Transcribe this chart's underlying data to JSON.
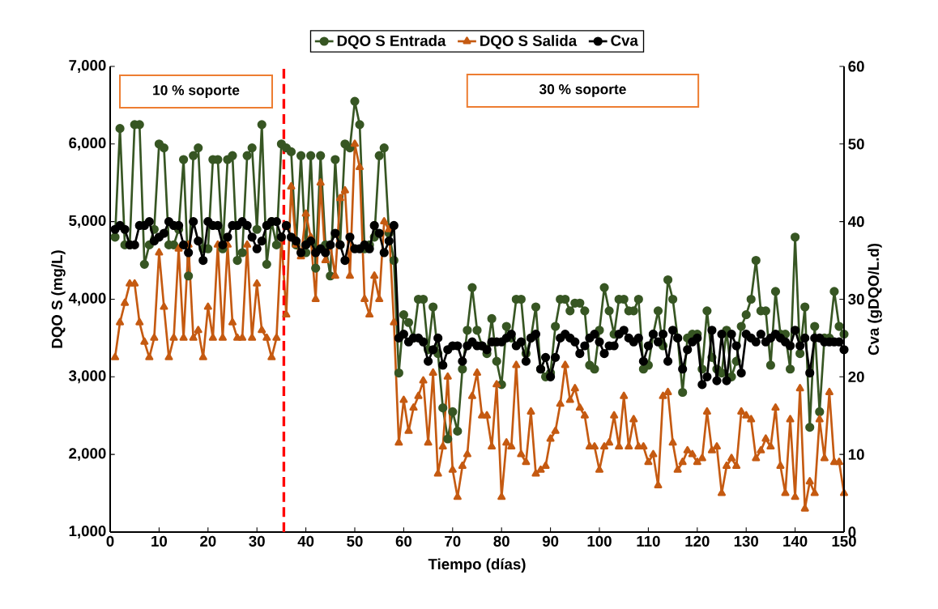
{
  "chart_data": {
    "type": "line",
    "xlabel": "Tiempo (días)",
    "ylabel": "DQO S (mg/L)",
    "y2label": "Cva (gDQO/L.d)",
    "x": [
      1,
      2,
      3,
      4,
      5,
      6,
      7,
      8,
      9,
      10,
      11,
      12,
      13,
      14,
      15,
      16,
      17,
      18,
      19,
      20,
      21,
      22,
      23,
      24,
      25,
      26,
      27,
      28,
      29,
      30,
      31,
      32,
      33,
      34,
      35,
      36,
      37,
      38,
      39,
      40,
      41,
      42,
      43,
      44,
      45,
      46,
      47,
      48,
      49,
      50,
      51,
      52,
      53,
      54,
      55,
      56,
      57,
      58,
      59,
      60,
      61,
      62,
      63,
      64,
      65,
      66,
      67,
      68,
      69,
      70,
      71,
      72,
      73,
      74,
      75,
      76,
      77,
      78,
      79,
      80,
      81,
      82,
      83,
      84,
      85,
      86,
      87,
      88,
      89,
      90,
      91,
      92,
      93,
      94,
      95,
      96,
      97,
      98,
      99,
      100,
      101,
      102,
      103,
      104,
      105,
      106,
      107,
      108,
      109,
      110,
      111,
      112,
      113,
      114,
      115,
      116,
      117,
      118,
      119,
      120,
      121,
      122,
      123,
      124,
      125,
      126,
      127,
      128,
      129,
      130,
      131,
      132,
      133,
      134,
      135,
      136,
      137,
      138,
      139,
      140,
      141,
      142,
      143,
      144,
      145,
      146,
      147,
      148,
      149,
      150
    ],
    "series": [
      {
        "name": "DQO S Entrada",
        "color": "#375623",
        "marker": "circle",
        "values": [
          4800,
          6200,
          4700,
          4700,
          6250,
          6250,
          4450,
          4700,
          4900,
          6000,
          5950,
          4700,
          4700,
          4900,
          5800,
          4300,
          5850,
          5950,
          4650,
          4650,
          5800,
          5800,
          4650,
          5800,
          5850,
          4500,
          4600,
          5850,
          5950,
          4900,
          6250,
          4450,
          5000,
          4700,
          6000,
          5950,
          5900,
          4700,
          5850,
          4600,
          5850,
          4400,
          5850,
          4700,
          4300,
          5800,
          4700,
          6000,
          5950,
          6550,
          6250,
          4650,
          4700,
          4800,
          5850,
          5950,
          4850,
          4500,
          3050,
          3800,
          3700,
          3500,
          4000,
          4000,
          3350,
          3900,
          3300,
          2600,
          2200,
          2550,
          2300,
          3100,
          3600,
          4150,
          3600,
          3400,
          3300,
          3750,
          3200,
          2900,
          3650,
          3500,
          4000,
          4000,
          3300,
          3500,
          3900,
          3100,
          3000,
          3050,
          3650,
          4000,
          4000,
          3850,
          3950,
          3950,
          3850,
          3150,
          3100,
          3600,
          4150,
          3850,
          3550,
          4000,
          4000,
          3850,
          3850,
          4000,
          3100,
          3150,
          3550,
          3850,
          3400,
          4250,
          4000,
          3500,
          2800,
          3500,
          3550,
          3550,
          3100,
          3850,
          3250,
          3100,
          3050,
          3600,
          3000,
          3200,
          3650,
          3800,
          4000,
          4500,
          3850,
          3850,
          3150,
          4100,
          3550,
          3550,
          3100,
          4800,
          3300,
          3900,
          2350,
          3650,
          2550,
          3500,
          3500,
          4100,
          3650,
          3550
        ]
      },
      {
        "name": "DQO S Salida",
        "color": "#c55a11",
        "marker": "triangle",
        "values": [
          3250,
          3700,
          3950,
          4200,
          4200,
          3700,
          3450,
          3250,
          3500,
          4600,
          3900,
          3250,
          3500,
          4650,
          3500,
          4700,
          3500,
          3600,
          3250,
          3900,
          3500,
          4700,
          3500,
          4700,
          3700,
          3500,
          3500,
          4700,
          3500,
          4200,
          3600,
          3500,
          3250,
          3500,
          4800,
          3800,
          5450,
          4700,
          4550,
          5100,
          4800,
          4000,
          5500,
          4500,
          4700,
          4300,
          5300,
          5400,
          4300,
          6000,
          5700,
          4000,
          3800,
          4300,
          4000,
          5000,
          4900,
          3700,
          2150,
          2700,
          2300,
          2600,
          2750,
          2950,
          2150,
          3050,
          1750,
          2100,
          3000,
          1800,
          1450,
          1850,
          2000,
          2750,
          3050,
          2500,
          2500,
          2100,
          2900,
          1450,
          2150,
          2100,
          3150,
          2000,
          1900,
          2550,
          1750,
          1800,
          1850,
          2200,
          2300,
          2650,
          3150,
          2700,
          2850,
          2600,
          2500,
          2100,
          2100,
          1800,
          2100,
          2150,
          2500,
          2100,
          2750,
          2100,
          2450,
          2100,
          2100,
          1900,
          2000,
          1600,
          2750,
          2800,
          2150,
          1800,
          1900,
          2050,
          2000,
          1900,
          1950,
          2550,
          2050,
          2100,
          1500,
          1850,
          1950,
          1850,
          2550,
          2500,
          2450,
          1950,
          2050,
          2200,
          2100,
          2600,
          1850,
          1500,
          2450,
          1450,
          2850,
          1300,
          1650,
          1500,
          2450,
          1950,
          2800,
          1900,
          1900,
          1500
        ]
      },
      {
        "name": "Cva",
        "color": "#000000",
        "marker": "circle",
        "axis": "y2",
        "values": [
          39,
          39.5,
          39,
          37,
          37,
          39.5,
          39.5,
          40,
          37.5,
          38,
          38.5,
          40,
          39.5,
          39.5,
          37,
          36,
          40,
          37.5,
          35,
          40,
          39.5,
          39.5,
          37,
          38,
          39.5,
          39.5,
          40,
          39.5,
          38,
          36.5,
          37.5,
          39.5,
          40,
          40,
          38,
          39.5,
          38,
          37.5,
          36,
          37,
          37.5,
          36,
          36.5,
          36,
          37,
          38.5,
          37,
          35,
          38,
          36.5,
          36.5,
          37,
          36.5,
          39.5,
          38.5,
          36,
          37.5,
          39.5,
          25,
          25.5,
          24.5,
          25,
          25,
          24.5,
          22,
          23.5,
          25,
          21.5,
          23.5,
          24,
          24,
          22,
          24,
          24.5,
          24,
          24,
          23.5,
          24.5,
          24.5,
          24.5,
          25,
          25.5,
          24,
          24.5,
          22,
          25,
          25.5,
          21,
          22.5,
          20,
          22.5,
          25,
          25.5,
          25,
          24.5,
          23,
          24,
          25,
          25.5,
          24.5,
          23,
          24,
          24,
          25.5,
          26,
          25,
          24.5,
          25,
          22,
          24,
          25.5,
          24.5,
          25.5,
          22,
          26,
          25,
          21,
          23.5,
          24.5,
          25,
          19,
          20,
          26,
          19.5,
          25.5,
          19.5,
          25.5,
          24,
          20.5,
          25.5,
          25,
          24.5,
          25.5,
          24.5,
          25,
          25.5,
          25,
          24.5,
          24,
          26,
          24,
          25,
          20.5,
          25,
          25,
          24.5,
          24.5,
          24.5,
          24.5,
          23.5
        ]
      }
    ],
    "xlim": [
      0,
      150
    ],
    "xticks": [
      0,
      10,
      20,
      30,
      40,
      50,
      60,
      70,
      80,
      90,
      100,
      110,
      120,
      130,
      140,
      150
    ],
    "ylim": [
      1000,
      7000
    ],
    "yticks": [
      {
        "value": 1000,
        "label": "1,000"
      },
      {
        "value": 2000,
        "label": "2,000"
      },
      {
        "value": 3000,
        "label": "3,000"
      },
      {
        "value": 4000,
        "label": "4,000"
      },
      {
        "value": 5000,
        "label": "5,000"
      },
      {
        "value": 6000,
        "label": "6,000"
      },
      {
        "value": 7000,
        "label": "7,000"
      }
    ],
    "y2lim": [
      0,
      60
    ],
    "y2ticks": [
      0,
      10,
      20,
      30,
      40,
      50,
      60
    ],
    "ref_lines": [
      {
        "axis": "x",
        "value": 35.5,
        "color": "#ff0000",
        "line_style": "dashed"
      }
    ],
    "annotations": [
      "10 % soporte",
      "30 % soporte"
    ],
    "legend": "top",
    "grid": false,
    "line_style": "solid"
  }
}
